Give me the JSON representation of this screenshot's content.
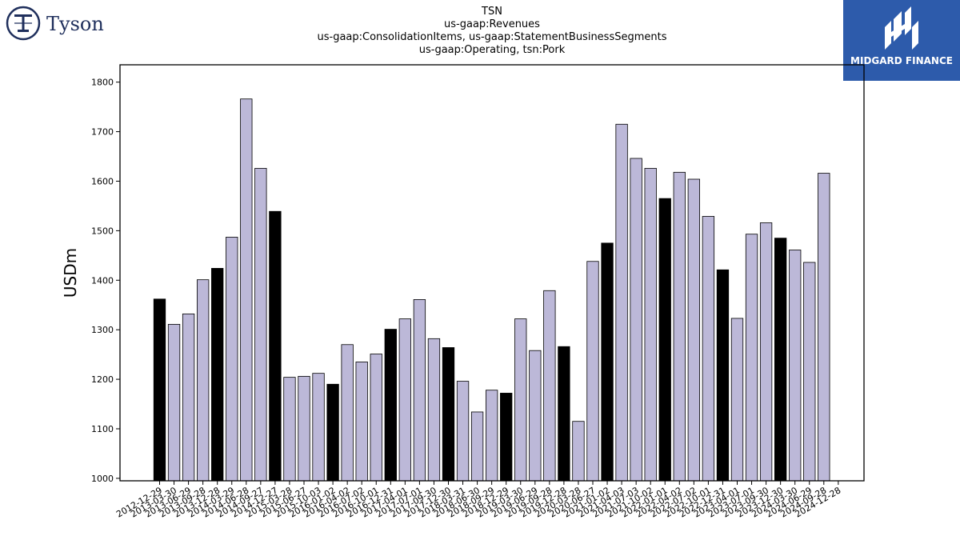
{
  "logos": {
    "left": {
      "text": "Tyson",
      "icon": "tyson-t-icon",
      "color": "#1f2f5c"
    },
    "right": {
      "text": "MIDGARD FINANCE",
      "icon": "midgard-m-icon",
      "bg": "#2d5bab"
    }
  },
  "chart_data": {
    "type": "bar",
    "title_lines": [
      "TSN",
      "us-gaap:Revenues",
      "us-gaap:ConsolidationItems, us-gaap:StatementBusinessSegments",
      "us-gaap:Operating, tsn:Pork"
    ],
    "xlabel": "",
    "ylabel": "USDm",
    "ylim": [
      995,
      1835
    ],
    "yticks": [
      1000,
      1100,
      1200,
      1300,
      1400,
      1500,
      1600,
      1700,
      1800
    ],
    "colors": {
      "fiscal_year_end": "#000000",
      "quarter": "#bcb8d8",
      "edge": "#000000"
    },
    "categories": [
      "2012-12-29",
      "2013-03-30",
      "2013-06-29",
      "2013-09-28",
      "2013-12-28",
      "2014-03-29",
      "2014-06-28",
      "2014-09-27",
      "2014-12-27",
      "2015-03-28",
      "2015-06-27",
      "2015-10-03",
      "2016-01-02",
      "2016-04-02",
      "2016-07-02",
      "2016-10-01",
      "2016-12-31",
      "2017-04-01",
      "2017-07-01",
      "2017-09-30",
      "2017-12-30",
      "2018-03-31",
      "2018-06-30",
      "2018-09-29",
      "2018-12-29",
      "2019-03-30",
      "2019-06-29",
      "2019-09-28",
      "2019-12-28",
      "2020-03-28",
      "2020-06-27",
      "2021-01-02",
      "2021-04-03",
      "2021-07-03",
      "2021-10-02",
      "2022-01-01",
      "2022-04-02",
      "2022-07-02",
      "2022-10-01",
      "2022-12-31",
      "2023-04-01",
      "2023-07-01",
      "2023-09-30",
      "2023-12-30",
      "2024-03-30",
      "2024-06-29",
      "2024-09-28",
      "2024-12-28"
    ],
    "values": [
      1362,
      1311,
      1332,
      1401,
      1424,
      1487,
      1766,
      1626,
      1539,
      1204,
      1206,
      1212,
      1190,
      1270,
      1235,
      1251,
      1301,
      1322,
      1361,
      1282,
      1264,
      1196,
      1134,
      1178,
      1172,
      1322,
      1258,
      1379,
      1266,
      1115,
      1438,
      1475,
      1715,
      1646,
      1626,
      1565,
      1618,
      1604,
      1529,
      1421,
      1323,
      1493,
      1516,
      1485,
      1461,
      1436,
      1616,
      null
    ],
    "fiscal_year_end": [
      true,
      false,
      false,
      false,
      true,
      false,
      false,
      false,
      true,
      false,
      false,
      false,
      true,
      false,
      false,
      false,
      true,
      false,
      false,
      false,
      true,
      false,
      false,
      false,
      true,
      false,
      false,
      false,
      true,
      false,
      false,
      true,
      false,
      false,
      false,
      true,
      false,
      false,
      false,
      true,
      false,
      false,
      false,
      true,
      false,
      false,
      false,
      true
    ]
  }
}
